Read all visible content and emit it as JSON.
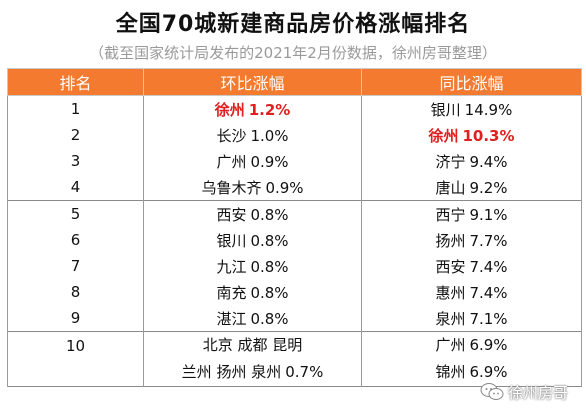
{
  "title": "全国70城新建商品房价格涨幅排名",
  "subtitle": "（截至国家统计局发布的2021年2月份数据，徐州房哥整理）",
  "headers": [
    "排名",
    "环比涨幅",
    "同比涨幅"
  ],
  "rows": [
    {
      "rank": "1",
      "mom_city": "徐州",
      "mom_value": "1.2%",
      "yoy_city": "银川",
      "yoy_value": "14.9%"
    },
    {
      "rank": "2",
      "mom_city": "长沙",
      "mom_value": "1.0%",
      "yoy_city": "徐州",
      "yoy_value": "10.3%"
    },
    {
      "rank": "3",
      "mom_city": "广州",
      "mom_value": "0.9%",
      "yoy_city": "济宁",
      "yoy_value": "9.4%"
    },
    {
      "rank": "4",
      "mom_city": "乌鲁木齐",
      "mom_value": "0.9%",
      "yoy_city": "唐山",
      "yoy_value": "9.2%"
    },
    {
      "rank": "5",
      "mom_city": "西安",
      "mom_value": "0.8%",
      "yoy_city": "西宁",
      "yoy_value": "9.1%"
    },
    {
      "rank": "6",
      "mom_city": "银川",
      "mom_value": "0.8%",
      "yoy_city": "扬州",
      "yoy_value": "7.7%"
    },
    {
      "rank": "7",
      "mom_city": "九江",
      "mom_value": "0.8%",
      "yoy_city": "西安",
      "yoy_value": "7.4%"
    },
    {
      "rank": "8",
      "mom_city": "南充",
      "mom_value": "0.8%",
      "yoy_city": "惠州",
      "yoy_value": "7.4%"
    },
    {
      "rank": "9",
      "mom_city": "湛江",
      "mom_value": "0.8%",
      "yoy_city": "泉州",
      "yoy_value": "7.1%"
    }
  ],
  "row10": {
    "rank": "10",
    "mom_line1": "北京 成都 昆明",
    "mom_line2_cities": "兰州 扬州 泉州",
    "mom_line2_value": "0.7%",
    "yoy": [
      {
        "city": "广州",
        "value": "6.9%"
      },
      {
        "city": "锦州",
        "value": "6.9%"
      }
    ]
  },
  "watermark": {
    "text": "徐州房哥",
    "icon": "wechat-icon"
  },
  "colors": {
    "header_bg": "#f37a2f",
    "highlight": "#e02020",
    "subtitle": "#9a9a9a"
  }
}
